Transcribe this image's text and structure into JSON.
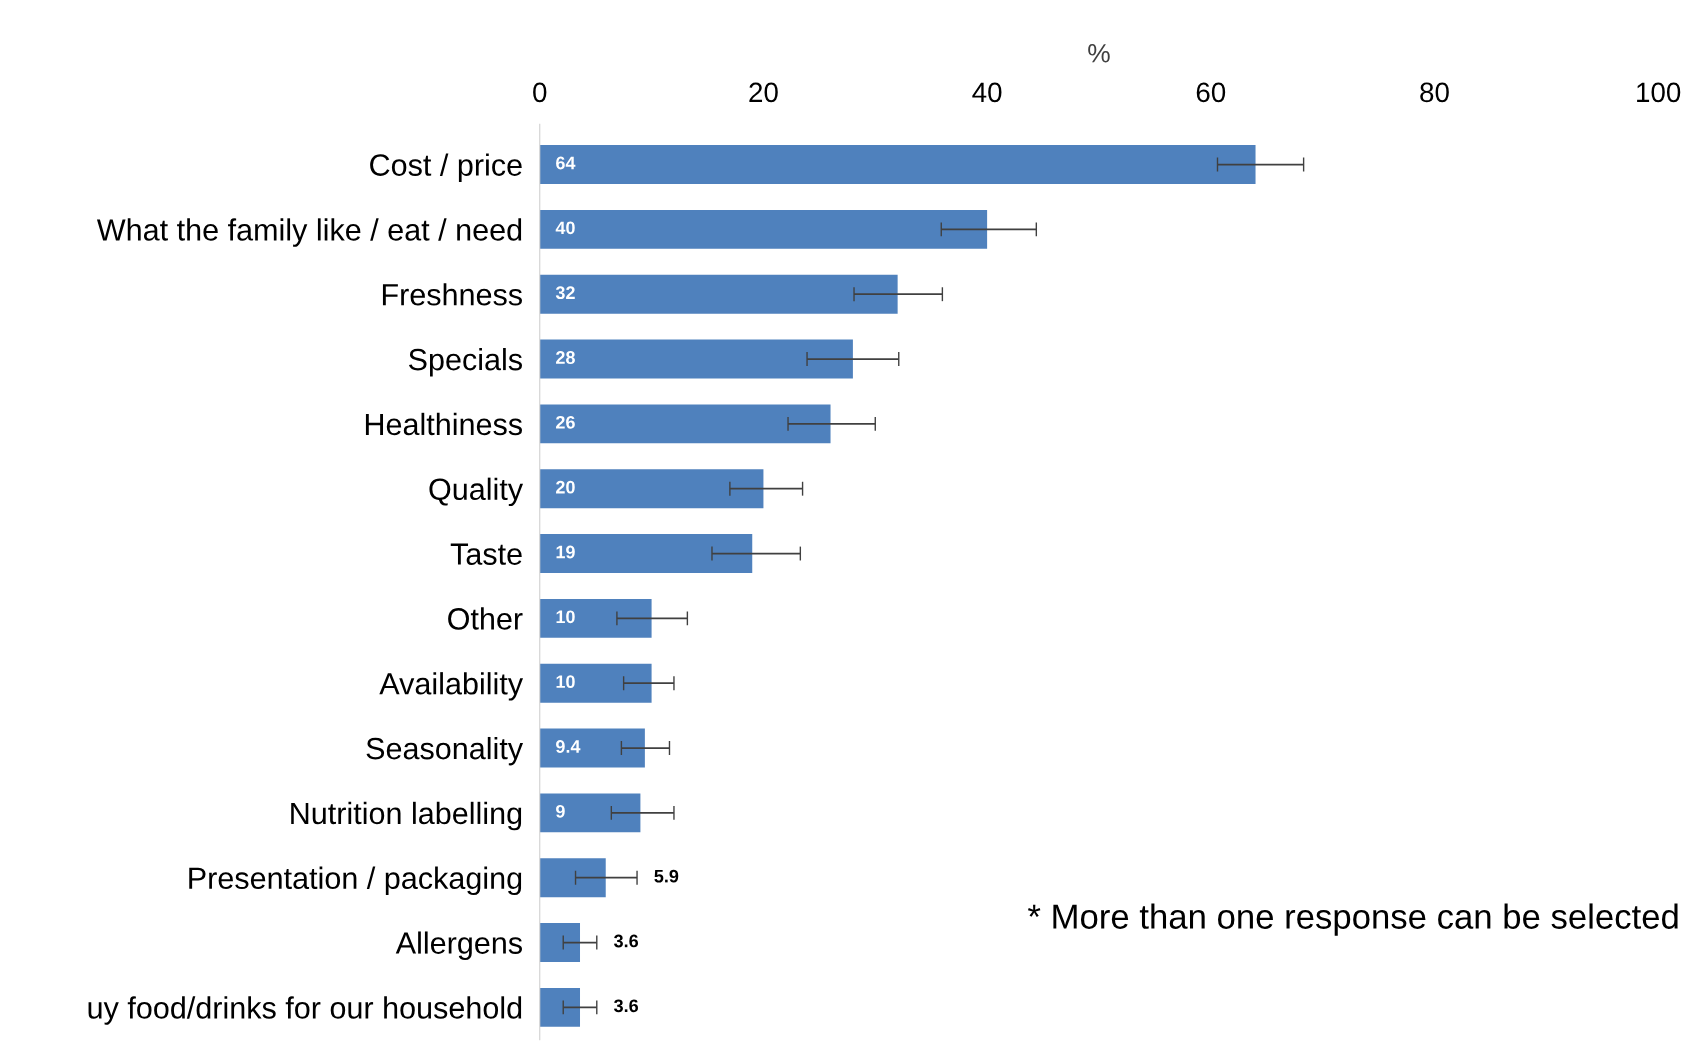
{
  "chart_data": {
    "type": "bar",
    "orientation": "horizontal",
    "xlabel": "%",
    "categories": [
      "Cost / price",
      "What the family like / eat / need",
      "Freshness",
      "Specials",
      "Healthiness",
      "Quality",
      "Taste",
      "Other",
      "Availability",
      "Seasonality",
      "Nutrition labelling",
      "Presentation / packaging",
      "Allergens",
      "uy food/drinks for our household"
    ],
    "values": [
      64,
      40,
      32,
      28,
      26,
      20,
      19,
      10,
      10,
      9.4,
      9,
      5.9,
      3.6,
      3.6
    ],
    "errors": [
      [
        60.6,
        68.3
      ],
      [
        35.9,
        44.4
      ],
      [
        28.1,
        36.0
      ],
      [
        23.9,
        32.1
      ],
      [
        22.2,
        30.0
      ],
      [
        17.0,
        23.5
      ],
      [
        15.4,
        23.3
      ],
      [
        6.9,
        13.2
      ],
      [
        7.5,
        12.0
      ],
      [
        7.3,
        11.6
      ],
      [
        6.4,
        12.0
      ],
      [
        3.2,
        8.7
      ],
      [
        2.1,
        5.1
      ],
      [
        2.1,
        5.1
      ]
    ],
    "color": "#4f81bd",
    "xlim": [
      0,
      100
    ],
    "xticks": [
      0,
      20,
      40,
      60,
      80,
      100
    ],
    "data_labels": true,
    "grid": false,
    "annotations": [
      "* More than one response can be selected"
    ]
  }
}
